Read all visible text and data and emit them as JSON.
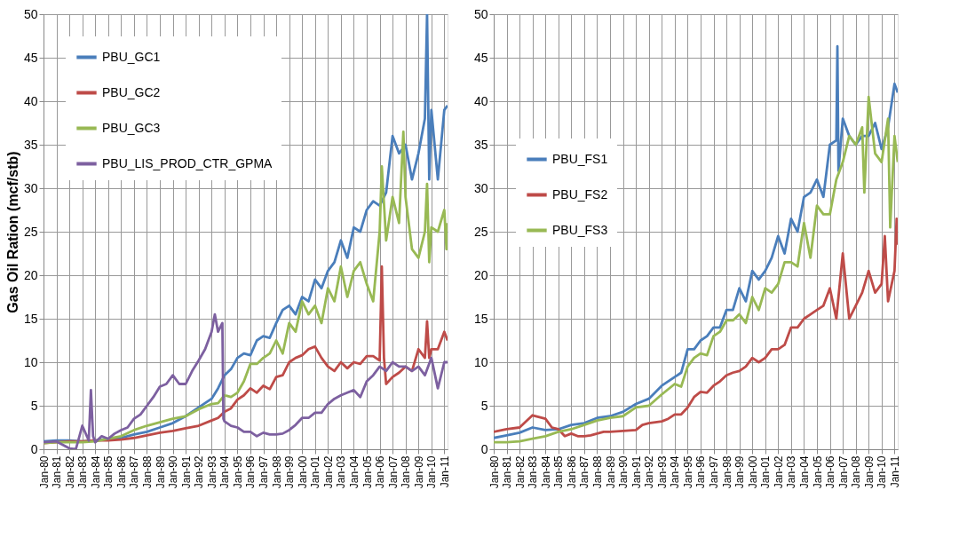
{
  "chart_data": [
    {
      "type": "line",
      "ylabel": "Gas Oil Ration (mcf/stb)",
      "legend": "top left",
      "grid": true,
      "marker": "none",
      "line_style": "solid",
      "xlim": [
        "1980-01",
        "2011-04"
      ],
      "ylim": [
        0,
        50
      ],
      "yticks": [
        0,
        5,
        10,
        15,
        20,
        25,
        30,
        35,
        40,
        45,
        50
      ],
      "xticks": [
        {
          "value": "1980-01",
          "label": "Jan-80"
        },
        {
          "value": "1981-01",
          "label": "Jan-81"
        },
        {
          "value": "1982-01",
          "label": "Jan-82"
        },
        {
          "value": "1983-01",
          "label": "Jan-83"
        },
        {
          "value": "1984-01",
          "label": "Jan-84"
        },
        {
          "value": "1985-01",
          "label": "Jan-85"
        },
        {
          "value": "1986-01",
          "label": "Jan-86"
        },
        {
          "value": "1987-01",
          "label": "Jan-87"
        },
        {
          "value": "1988-01",
          "label": "Jan-88"
        },
        {
          "value": "1989-01",
          "label": "Jan-89"
        },
        {
          "value": "1990-01",
          "label": "Jan-90"
        },
        {
          "value": "1991-01",
          "label": "Jan-91"
        },
        {
          "value": "1992-01",
          "label": "Jan-92"
        },
        {
          "value": "1993-01",
          "label": "Jan-93"
        },
        {
          "value": "1994-01",
          "label": "Jan-94"
        },
        {
          "value": "1995-01",
          "label": "Jan-95"
        },
        {
          "value": "1996-01",
          "label": "Jan-96"
        },
        {
          "value": "1997-01",
          "label": "Jan-97"
        },
        {
          "value": "1998-01",
          "label": "Jan-98"
        },
        {
          "value": "1999-01",
          "label": "Jan-99"
        },
        {
          "value": "2000-01",
          "label": "Jan-00"
        },
        {
          "value": "2001-01",
          "label": "Jan-01"
        },
        {
          "value": "2002-01",
          "label": "Jan-02"
        },
        {
          "value": "2003-01",
          "label": "Jan-03"
        },
        {
          "value": "2004-01",
          "label": "Jan-04"
        },
        {
          "value": "2005-01",
          "label": "Jan-05"
        },
        {
          "value": "2006-01",
          "label": "Jan-06"
        },
        {
          "value": "2007-01",
          "label": "Jan-07"
        },
        {
          "value": "2008-01",
          "label": "Jan-08"
        },
        {
          "value": "2009-01",
          "label": "Jan-09"
        },
        {
          "value": "2010-01",
          "label": "Jan-10"
        },
        {
          "value": "2011-01",
          "label": "Jan-11"
        }
      ],
      "series": [
        {
          "name": "PBU_GC1",
          "color": "#4a7ebb",
          "x": [
            "1980-01",
            "1981-01",
            "1982-01",
            "1983-01",
            "1984-01",
            "1985-01",
            "1986-01",
            "1987-01",
            "1988-01",
            "1989-01",
            "1990-01",
            "1991-01",
            "1992-01",
            "1993-01",
            "1993-07",
            "1994-01",
            "1994-07",
            "1995-01",
            "1995-07",
            "1996-01",
            "1996-07",
            "1997-01",
            "1997-07",
            "1998-01",
            "1998-07",
            "1999-01",
            "1999-07",
            "2000-01",
            "2000-07",
            "2001-01",
            "2001-07",
            "2002-01",
            "2002-07",
            "2003-01",
            "2003-07",
            "2004-01",
            "2004-07",
            "2005-01",
            "2005-07",
            "2006-01",
            "2006-07",
            "2007-01",
            "2007-07",
            "2008-01",
            "2008-07",
            "2009-01",
            "2009-07",
            "2009-09",
            "2009-11",
            "2010-01",
            "2010-07",
            "2011-01",
            "2011-04"
          ],
          "values": [
            0.9,
            1.0,
            1.0,
            0.9,
            1.0,
            1.2,
            1.3,
            1.7,
            2.0,
            2.5,
            3.0,
            3.8,
            4.8,
            5.8,
            7,
            8.5,
            9.2,
            10.5,
            11,
            10.8,
            12.5,
            13,
            12.8,
            14.5,
            16,
            16.5,
            15.5,
            17.5,
            17,
            19.5,
            18.5,
            20.5,
            21.5,
            24,
            22,
            25.5,
            25,
            27.5,
            28.5,
            28,
            29.5,
            36,
            34,
            35,
            31,
            34,
            38,
            50,
            31,
            39,
            31,
            39,
            39.5
          ]
        },
        {
          "name": "PBU_GC2",
          "color": "#be4b48",
          "x": [
            "1980-01",
            "1981-01",
            "1982-01",
            "1983-01",
            "1984-01",
            "1985-01",
            "1986-01",
            "1987-01",
            "1988-01",
            "1989-01",
            "1990-01",
            "1991-01",
            "1992-01",
            "1993-01",
            "1993-07",
            "1994-01",
            "1994-07",
            "1995-01",
            "1995-07",
            "1996-01",
            "1996-07",
            "1997-01",
            "1997-07",
            "1998-01",
            "1998-07",
            "1999-01",
            "1999-07",
            "2000-01",
            "2000-07",
            "2001-01",
            "2001-07",
            "2002-01",
            "2002-07",
            "2003-01",
            "2003-07",
            "2004-01",
            "2004-07",
            "2005-01",
            "2005-07",
            "2006-01",
            "2006-03",
            "2006-05",
            "2006-07",
            "2007-01",
            "2007-07",
            "2008-01",
            "2008-07",
            "2009-01",
            "2009-07",
            "2009-09",
            "2009-11",
            "2010-01",
            "2010-07",
            "2011-01",
            "2011-04"
          ],
          "values": [
            0.7,
            0.8,
            0.9,
            0.9,
            1.0,
            1.0,
            1.1,
            1.3,
            1.6,
            1.9,
            2.1,
            2.4,
            2.7,
            3.3,
            3.6,
            4.3,
            4.7,
            5.7,
            6.2,
            7.0,
            6.5,
            7.3,
            6.9,
            8.3,
            8.5,
            10,
            10.5,
            10.8,
            11.5,
            11.8,
            10.5,
            9.5,
            9,
            10,
            9.3,
            10,
            9.8,
            10.7,
            10.7,
            10.2,
            21,
            10.5,
            7.5,
            8.3,
            8.8,
            9.5,
            9,
            11.5,
            10.5,
            14.7,
            10.5,
            11.5,
            11.5,
            13.5,
            12.5
          ]
        },
        {
          "name": "PBU_GC3",
          "color": "#98b954",
          "x": [
            "1980-01",
            "1981-01",
            "1982-01",
            "1983-01",
            "1984-01",
            "1985-01",
            "1986-01",
            "1987-01",
            "1988-01",
            "1989-01",
            "1990-01",
            "1991-01",
            "1992-01",
            "1993-01",
            "1993-07",
            "1994-01",
            "1994-07",
            "1995-01",
            "1995-07",
            "1996-01",
            "1996-07",
            "1997-01",
            "1997-07",
            "1998-01",
            "1998-07",
            "1999-01",
            "1999-07",
            "2000-01",
            "2000-07",
            "2001-01",
            "2001-07",
            "2002-01",
            "2002-07",
            "2003-01",
            "2003-07",
            "2004-01",
            "2004-07",
            "2005-01",
            "2005-07",
            "2006-01",
            "2006-03",
            "2006-07",
            "2007-01",
            "2007-07",
            "2007-11",
            "2008-01",
            "2008-07",
            "2009-01",
            "2009-07",
            "2009-09",
            "2009-11",
            "2010-01",
            "2010-07",
            "2011-01",
            "2011-03",
            "2011-04"
          ],
          "values": [
            0.7,
            0.8,
            0.8,
            0.8,
            0.9,
            1.2,
            1.5,
            2.2,
            2.7,
            3.1,
            3.5,
            3.8,
            4.6,
            5.2,
            5.3,
            6.2,
            6.0,
            6.5,
            7.8,
            9.8,
            9.8,
            10.5,
            11,
            12.5,
            11,
            14.5,
            13.5,
            17,
            15.5,
            16.5,
            14.5,
            18.5,
            17,
            21,
            17.5,
            20.5,
            21.5,
            19,
            17,
            25,
            32.5,
            24,
            29,
            26,
            36.5,
            29,
            23,
            22,
            25,
            30.5,
            21.5,
            25.5,
            25,
            27.5,
            23,
            26
          ]
        },
        {
          "name": "PBU_LIS_PROD_CTR_GPMA",
          "color": "#7d60a0",
          "x": [
            "1980-01",
            "1981-01",
            "1982-01",
            "1982-07",
            "1983-01",
            "1983-07",
            "1983-09",
            "1983-11",
            "1984-01",
            "1984-07",
            "1985-01",
            "1985-07",
            "1986-01",
            "1986-07",
            "1987-01",
            "1987-07",
            "1988-01",
            "1988-07",
            "1989-01",
            "1989-07",
            "1990-01",
            "1990-07",
            "1991-01",
            "1991-07",
            "1992-01",
            "1992-07",
            "1993-01",
            "1993-04",
            "1993-07",
            "1993-11",
            "1993-12",
            "1994-01",
            "1994-07",
            "1995-01",
            "1995-07",
            "1996-01",
            "1996-07",
            "1997-01",
            "1997-07",
            "1998-01",
            "1998-07",
            "1999-01",
            "1999-07",
            "2000-01",
            "2000-07",
            "2001-01",
            "2001-07",
            "2002-01",
            "2002-07",
            "2003-01",
            "2003-07",
            "2004-01",
            "2004-07",
            "2005-01",
            "2005-07",
            "2006-01",
            "2006-07",
            "2007-01",
            "2007-07",
            "2008-01",
            "2008-07",
            "2009-01",
            "2009-07",
            "2010-01",
            "2010-07",
            "2011-01",
            "2011-04"
          ],
          "values": [
            0.8,
            0.9,
            0.1,
            0,
            2.7,
            1,
            6.8,
            1.5,
            0.8,
            1.5,
            1.2,
            1.8,
            2.2,
            2.5,
            3.5,
            4.0,
            5.0,
            6.0,
            7.2,
            7.5,
            8.5,
            7.5,
            7.5,
            9.0,
            10.2,
            11.5,
            13.5,
            15.5,
            13.5,
            14.5,
            3.5,
            3.2,
            2.7,
            2.5,
            2.0,
            2.0,
            1.5,
            1.9,
            1.7,
            1.7,
            1.8,
            2.2,
            2.8,
            3.6,
            3.6,
            4.2,
            4.2,
            5.2,
            5.8,
            6.2,
            6.5,
            6.8,
            6.0,
            7.8,
            8.5,
            9.5,
            9,
            10,
            9.5,
            9.5,
            9,
            9.5,
            8.5,
            10.5,
            7,
            10,
            10
          ]
        }
      ]
    },
    {
      "type": "line",
      "legend": "left",
      "grid": true,
      "marker": "none",
      "line_style": "solid",
      "xlim": [
        "1980-01",
        "2011-04"
      ],
      "ylim": [
        0,
        50
      ],
      "yticks": [
        0,
        5,
        10,
        15,
        20,
        25,
        30,
        35,
        40,
        45,
        50
      ],
      "xticks": [
        {
          "value": "1980-01",
          "label": "Jan-80"
        },
        {
          "value": "1981-01",
          "label": "Jan-81"
        },
        {
          "value": "1982-01",
          "label": "Jan-82"
        },
        {
          "value": "1983-01",
          "label": "Jan-83"
        },
        {
          "value": "1984-01",
          "label": "Jan-84"
        },
        {
          "value": "1985-01",
          "label": "Jan-85"
        },
        {
          "value": "1986-01",
          "label": "Jan-86"
        },
        {
          "value": "1987-01",
          "label": "Jan-87"
        },
        {
          "value": "1988-01",
          "label": "Jan-88"
        },
        {
          "value": "1989-01",
          "label": "Jan-89"
        },
        {
          "value": "1990-01",
          "label": "Jan-90"
        },
        {
          "value": "1991-01",
          "label": "Jan-91"
        },
        {
          "value": "1992-01",
          "label": "Jan-92"
        },
        {
          "value": "1993-01",
          "label": "Jan-93"
        },
        {
          "value": "1994-01",
          "label": "Jan-94"
        },
        {
          "value": "1995-01",
          "label": "Jan-95"
        },
        {
          "value": "1996-01",
          "label": "Jan-96"
        },
        {
          "value": "1997-01",
          "label": "Jan-97"
        },
        {
          "value": "1998-01",
          "label": "Jan-98"
        },
        {
          "value": "1999-01",
          "label": "Jan-99"
        },
        {
          "value": "2000-01",
          "label": "Jan-00"
        },
        {
          "value": "2001-01",
          "label": "Jan-01"
        },
        {
          "value": "2002-01",
          "label": "Jan-02"
        },
        {
          "value": "2003-01",
          "label": "Jan-03"
        },
        {
          "value": "2004-01",
          "label": "Jan-04"
        },
        {
          "value": "2005-01",
          "label": "Jan-05"
        },
        {
          "value": "2006-01",
          "label": "Jan-06"
        },
        {
          "value": "2007-01",
          "label": "Jan-07"
        },
        {
          "value": "2008-01",
          "label": "Jan-08"
        },
        {
          "value": "2009-01",
          "label": "Jan-09"
        },
        {
          "value": "2010-01",
          "label": "Jan-10"
        },
        {
          "value": "2011-01",
          "label": "Jan-11"
        }
      ],
      "series": [
        {
          "name": "PBU_FS1",
          "color": "#4a7ebb",
          "x": [
            "1980-01",
            "1981-01",
            "1982-01",
            "1983-01",
            "1984-01",
            "1985-01",
            "1986-01",
            "1987-01",
            "1988-01",
            "1989-01",
            "1990-01",
            "1991-01",
            "1992-01",
            "1993-01",
            "1994-01",
            "1994-07",
            "1995-01",
            "1995-07",
            "1996-01",
            "1996-07",
            "1997-01",
            "1997-07",
            "1998-01",
            "1998-07",
            "1999-01",
            "1999-07",
            "2000-01",
            "2000-07",
            "2001-01",
            "2001-07",
            "2002-01",
            "2002-07",
            "2003-01",
            "2003-07",
            "2004-01",
            "2004-07",
            "2005-01",
            "2005-07",
            "2006-01",
            "2006-07",
            "2006-08",
            "2006-09",
            "2007-01",
            "2007-07",
            "2008-01",
            "2008-07",
            "2009-01",
            "2009-07",
            "2010-01",
            "2010-07",
            "2011-01",
            "2011-04"
          ],
          "values": [
            1.3,
            1.6,
            1.9,
            2.5,
            2.2,
            2.3,
            2.8,
            3.0,
            3.6,
            3.8,
            4.3,
            5.2,
            5.8,
            7.3,
            8.3,
            8.8,
            11.5,
            11.5,
            12.5,
            13,
            14,
            14,
            16,
            16,
            18.5,
            17,
            20.5,
            19.5,
            20.5,
            22,
            24.5,
            22.5,
            26.5,
            25,
            29,
            29.5,
            31,
            29,
            35,
            35.5,
            46.3,
            32,
            38,
            36,
            35,
            36,
            36,
            37.5,
            34.5,
            37,
            42,
            41
          ]
        },
        {
          "name": "PBU_FS2",
          "color": "#be4b48",
          "x": [
            "1980-01",
            "1981-01",
            "1982-01",
            "1983-01",
            "1984-01",
            "1984-07",
            "1985-01",
            "1985-07",
            "1986-01",
            "1986-07",
            "1987-01",
            "1987-07",
            "1988-01",
            "1988-07",
            "1989-01",
            "1990-01",
            "1991-01",
            "1991-07",
            "1992-01",
            "1993-01",
            "1993-07",
            "1994-01",
            "1994-07",
            "1995-01",
            "1995-07",
            "1996-01",
            "1996-07",
            "1997-01",
            "1997-07",
            "1998-01",
            "1998-07",
            "1999-01",
            "1999-07",
            "2000-01",
            "2000-07",
            "2001-01",
            "2001-07",
            "2002-01",
            "2002-07",
            "2003-01",
            "2003-07",
            "2004-01",
            "2004-07",
            "2005-01",
            "2005-07",
            "2006-01",
            "2006-07",
            "2007-01",
            "2007-07",
            "2008-01",
            "2008-07",
            "2009-01",
            "2009-07",
            "2010-01",
            "2010-04",
            "2010-07",
            "2011-01",
            "2011-03",
            "2011-04"
          ],
          "values": [
            2.0,
            2.3,
            2.5,
            3.9,
            3.5,
            2.5,
            2.3,
            1.5,
            1.8,
            1.5,
            1.5,
            1.6,
            1.8,
            2.0,
            2.0,
            2.1,
            2.2,
            2.8,
            3.0,
            3.2,
            3.5,
            4.0,
            4.0,
            4.8,
            6.0,
            6.6,
            6.5,
            7.3,
            7.8,
            8.5,
            8.8,
            9.0,
            9.5,
            10.5,
            10,
            10.5,
            11.5,
            11.5,
            12,
            14,
            14,
            15,
            15.5,
            16,
            16.5,
            18.5,
            15,
            22.5,
            15,
            16.5,
            18,
            20.5,
            18,
            19,
            24.5,
            17,
            20.5,
            26.5,
            23.5
          ]
        },
        {
          "name": "PBU_FS3",
          "color": "#98b954",
          "x": [
            "1980-01",
            "1981-01",
            "1982-01",
            "1983-01",
            "1984-01",
            "1985-01",
            "1986-01",
            "1987-01",
            "1988-01",
            "1989-01",
            "1990-01",
            "1991-01",
            "1992-01",
            "1993-01",
            "1994-01",
            "1994-07",
            "1995-01",
            "1995-07",
            "1996-01",
            "1996-07",
            "1997-01",
            "1997-07",
            "1998-01",
            "1998-07",
            "1999-01",
            "1999-07",
            "2000-01",
            "2000-07",
            "2001-01",
            "2001-07",
            "2002-01",
            "2002-07",
            "2003-01",
            "2003-07",
            "2004-01",
            "2004-07",
            "2005-01",
            "2005-07",
            "2006-01",
            "2006-07",
            "2007-01",
            "2007-07",
            "2008-01",
            "2008-07",
            "2008-09",
            "2009-01",
            "2009-07",
            "2010-01",
            "2010-07",
            "2010-09",
            "2011-01",
            "2011-04"
          ],
          "values": [
            0.8,
            0.8,
            0.9,
            1.2,
            1.5,
            2.0,
            2.3,
            2.8,
            3.3,
            3.6,
            3.8,
            4.8,
            5.0,
            6.3,
            7.5,
            7.2,
            9.5,
            10.5,
            11,
            10.8,
            13,
            13.5,
            14.8,
            14.8,
            15.5,
            14.5,
            17.5,
            16,
            18.5,
            18,
            19,
            21.5,
            21.5,
            21,
            26,
            22,
            28,
            27,
            27,
            31,
            33,
            36,
            35,
            37,
            29.5,
            40.5,
            34,
            33,
            38,
            25.5,
            36,
            33
          ]
        }
      ]
    }
  ]
}
